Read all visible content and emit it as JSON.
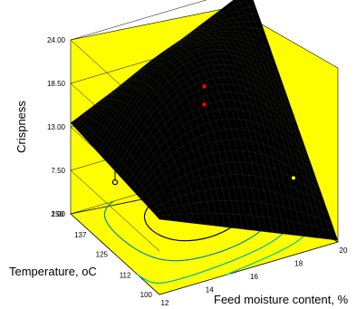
{
  "chart_data": {
    "type": "surface3d",
    "title": "",
    "xlabel": "Feed moisture content, %",
    "ylabel": "Temperature, oC",
    "zlabel": "Crispness",
    "x_ticks": [
      "12",
      "14",
      "16",
      "18",
      "20"
    ],
    "y_ticks": [
      "100",
      "112",
      "125",
      "137",
      "150"
    ],
    "z_ticks": [
      "2.00",
      "7.50",
      "13.00",
      "18.50",
      "24.00"
    ],
    "xlim": [
      12,
      20
    ],
    "ylim": [
      100,
      150
    ],
    "zlim": [
      2,
      24
    ],
    "surface_corners": [
      {
        "x": 12,
        "y": 150,
        "z": 13.5
      },
      {
        "x": 20,
        "y": 150,
        "z": 23.9
      },
      {
        "x": 12,
        "y": 100,
        "z": 11.5
      },
      {
        "x": 20,
        "y": 100,
        "z": 2.2
      }
    ],
    "surface_peak": {
      "x": 17,
      "y": 131,
      "z": 22.3
    },
    "design_points": [
      {
        "x": 16,
        "y": 125,
        "z": 19.9,
        "above": true
      },
      {
        "x": 16,
        "y": 125,
        "z": 17.6,
        "above": true
      },
      {
        "x": 12,
        "y": 125,
        "z": 11.1,
        "above": false
      },
      {
        "x": 20,
        "y": 125,
        "z": 5.0,
        "above": false
      }
    ],
    "contour_colors": [
      "#00c8a0",
      "#00b0c0",
      "#008aa8",
      "#000000"
    ],
    "colors": {
      "background": "#ffff00",
      "surface": "#000000",
      "above_point": "#ff0000"
    }
  }
}
